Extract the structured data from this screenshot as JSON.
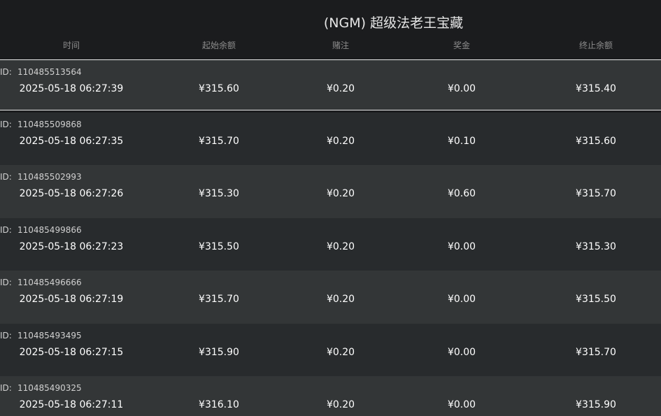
{
  "header": {
    "title": "(NGM) 超级法老王宝藏",
    "columns": [
      "时间",
      "起始余额",
      "赌注",
      "奖金",
      "终止余额"
    ]
  },
  "table": {
    "id_prefix": "ID:",
    "rows": [
      {
        "id": "110485513564",
        "cells": [
          "2025-05-18 06:27:39",
          "¥315.60",
          "¥0.20",
          "¥0.00",
          "¥315.40"
        ]
      },
      {
        "id": "110485509868",
        "cells": [
          "2025-05-18 06:27:35",
          "¥315.70",
          "¥0.20",
          "¥0.10",
          "¥315.60"
        ]
      },
      {
        "id": "110485502993",
        "cells": [
          "2025-05-18 06:27:26",
          "¥315.30",
          "¥0.20",
          "¥0.60",
          "¥315.70"
        ]
      },
      {
        "id": "110485499866",
        "cells": [
          "2025-05-18 06:27:23",
          "¥315.50",
          "¥0.20",
          "¥0.00",
          "¥315.30"
        ]
      },
      {
        "id": "110485496666",
        "cells": [
          "2025-05-18 06:27:19",
          "¥315.70",
          "¥0.20",
          "¥0.00",
          "¥315.50"
        ]
      },
      {
        "id": "110485493495",
        "cells": [
          "2025-05-18 06:27:15",
          "¥315.90",
          "¥0.20",
          "¥0.00",
          "¥315.70"
        ]
      },
      {
        "id": "110485490325",
        "cells": [
          "2025-05-18 06:27:11",
          "¥316.10",
          "¥0.20",
          "¥0.00",
          "¥315.90"
        ]
      }
    ]
  }
}
